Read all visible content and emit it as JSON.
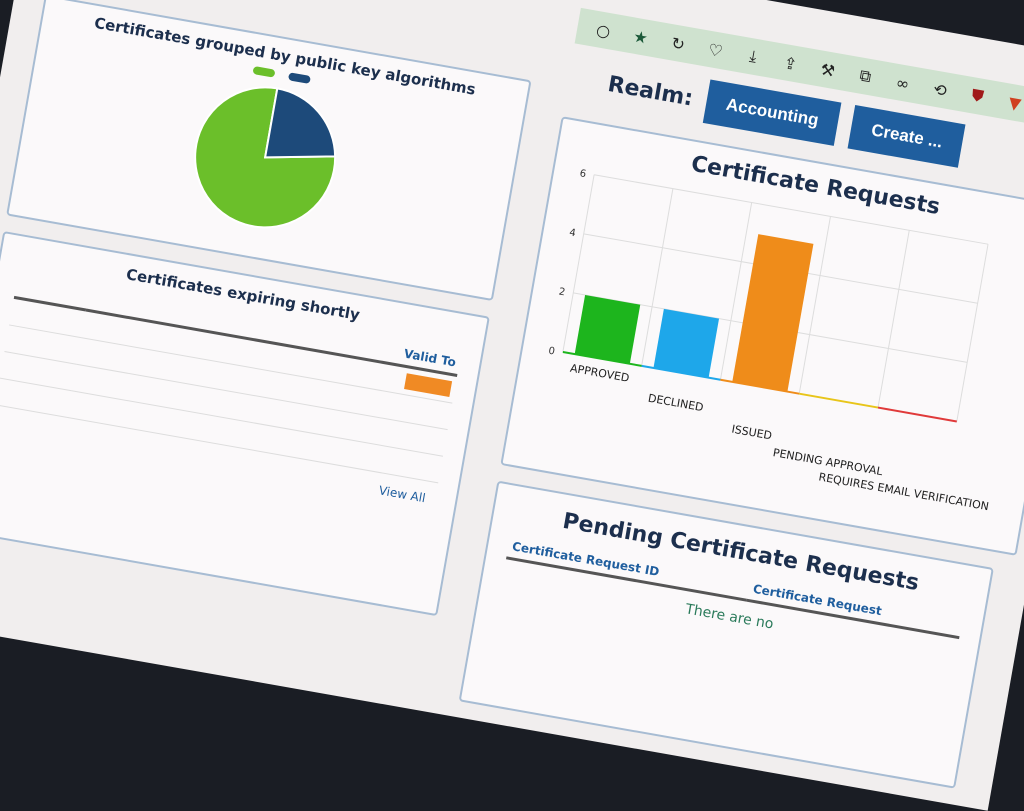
{
  "toolbar": {
    "icons": [
      "circle-icon",
      "star-icon",
      "reload-icon",
      "pocket-icon",
      "download-icon",
      "share-icon",
      "wrench-icon",
      "puzzle-icon",
      "infinity-icon",
      "history-icon",
      "ublock-icon",
      "shield-icon"
    ]
  },
  "header": {
    "realm_label": "Realm:",
    "realm_button": "Accounting",
    "create_button": "Create ..."
  },
  "pie_panel": {
    "title": "Certificates grouped by public key algorithms",
    "colors": [
      "#6bbf2a",
      "#1d4a7a"
    ]
  },
  "expiring_panel": {
    "title": "Certificates expiring shortly",
    "valid_to_header": "Valid To",
    "view_all": "View All"
  },
  "pending_panel": {
    "title": "Pending Certificate Requests",
    "col_id": "Certificate Request ID",
    "col_req": "Certificate Request",
    "empty_text": "There are no"
  },
  "chart_data": {
    "type": "bar",
    "title": "Certificate Requests",
    "categories": [
      "APPROVED",
      "DECLINED",
      "ISSUED",
      "PENDING APPROVAL",
      "REQUIRES EMAIL VERIFICATION"
    ],
    "values": [
      2,
      2,
      5,
      0,
      0
    ],
    "colors": [
      "#1db51d",
      "#1ea7ea",
      "#ef8c1a",
      "#e8c51a",
      "#e03a3a"
    ],
    "yticks": [
      0,
      2,
      4,
      6
    ],
    "ylim": [
      0,
      6
    ],
    "grid": true
  },
  "pie_data": {
    "values": [
      78,
      22
    ]
  }
}
